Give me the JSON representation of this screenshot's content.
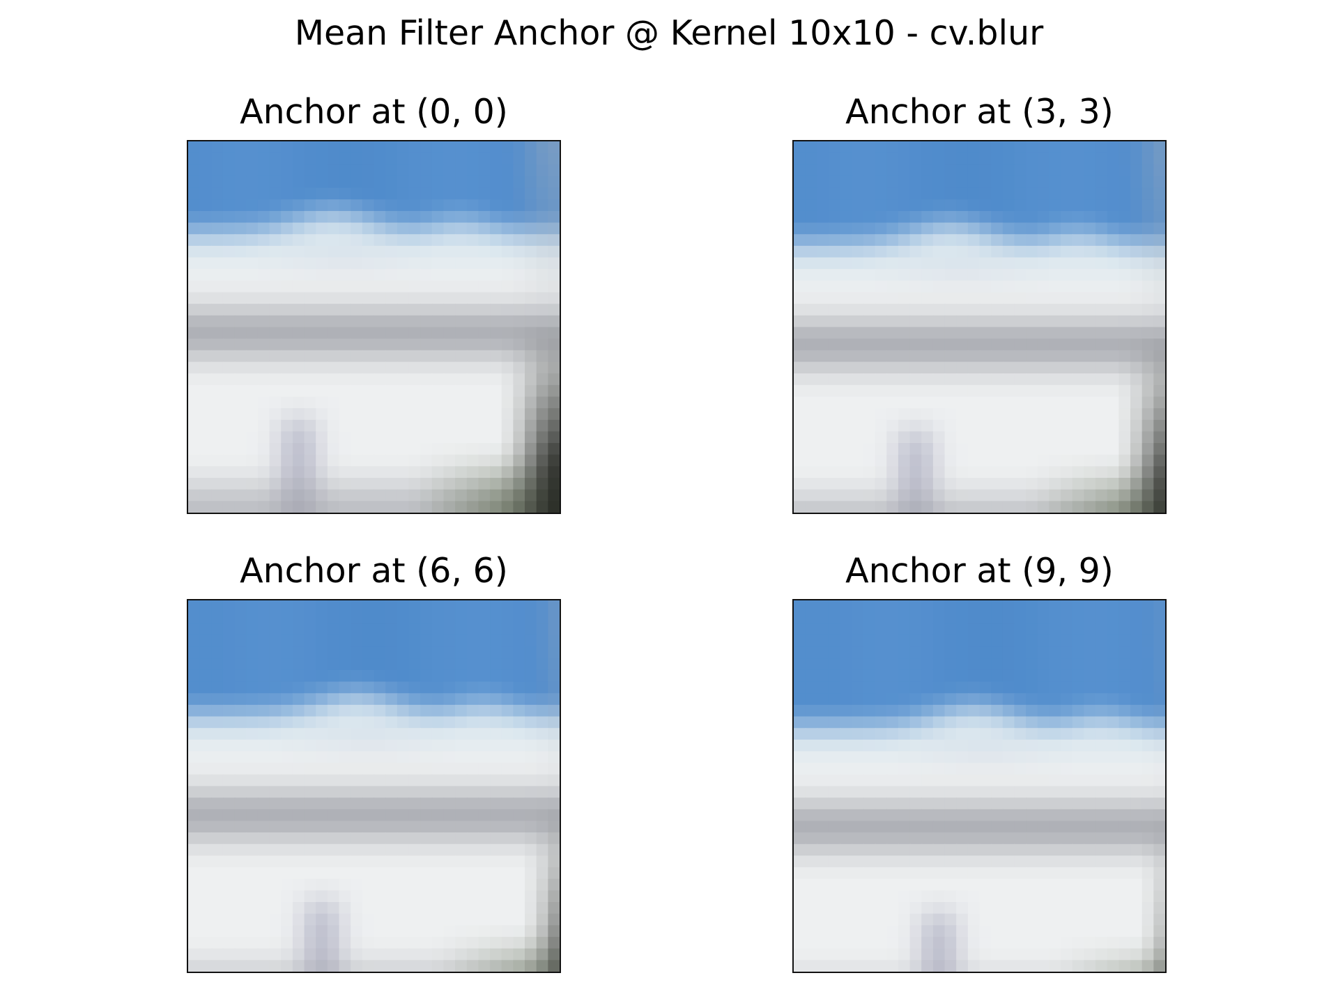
{
  "figure": {
    "title": "Mean Filter Anchor @ Kernel 10x10 - cv.blur"
  },
  "panels": [
    {
      "title": "Anchor at (0, 0)",
      "shift": 0
    },
    {
      "title": "Anchor at (3, 3)",
      "shift": 3
    },
    {
      "title": "Anchor at (6, 6)",
      "shift": 6
    },
    {
      "title": "Anchor at (9, 9)",
      "shift": 9
    }
  ],
  "image": {
    "subject": "blurred scene of blue sky over a light building with grey horizontal band",
    "colors": {
      "sky": "#4a86c8",
      "sky_light": "#5b95d2",
      "haze": "#dce8ef",
      "white": "#eef0f1",
      "grey_band": "#9a9ca3",
      "dark_corner": "#22241f",
      "green_tint": "#4d5a3a",
      "lavender": "#a8a8c8"
    }
  }
}
